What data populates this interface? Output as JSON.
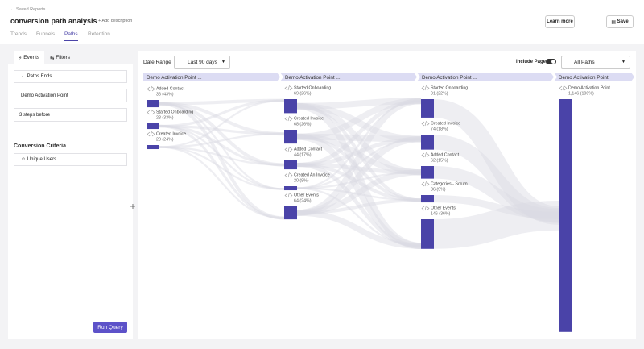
{
  "nav": {
    "back": "Saved Reports",
    "title": "conversion path analysis",
    "add_description": "Add description",
    "tabs": [
      "Trends",
      "Funnels",
      "Paths",
      "Retention"
    ],
    "learn_more": "Learn more",
    "save": "Save"
  },
  "sidebar": {
    "tabs": [
      "Events",
      "Filters"
    ],
    "path_ends": "Paths Ends",
    "event": "Demo Activation Point",
    "steps": "3 steps before",
    "criteria_title": "Conversion Criteria",
    "criteria": "Unique Users",
    "run": "Run Query"
  },
  "toolbar": {
    "date_range_label": "Date Range",
    "date_range": "Last 90 days",
    "include_pages": "Include Pages",
    "paths": "All Paths"
  },
  "columns": [
    {
      "header": "Demo Activation Point ...",
      "nodes": [
        {
          "label": "Added Contact",
          "value": 36,
          "value_label": "36 (43%)"
        },
        {
          "label": "Started Onboarding",
          "value": 28,
          "value_label": "28 (33%)"
        },
        {
          "label": "Created Invoice",
          "value": 20,
          "value_label": "20 (24%)"
        }
      ]
    },
    {
      "header": "Demo Activation Point ...",
      "nodes": [
        {
          "label": "Started Onboarding",
          "value": 69,
          "value_label": "69 (26%)"
        },
        {
          "label": "Created Invoice",
          "value": 68,
          "value_label": "68 (26%)"
        },
        {
          "label": "Added Contact",
          "value": 44,
          "value_label": "44 (17%)"
        },
        {
          "label": "Created An Invoice",
          "value": 20,
          "value_label": "20 (8%)"
        },
        {
          "label": "Other Events",
          "value": 64,
          "value_label": "64 (24%)"
        }
      ]
    },
    {
      "header": "Demo Activation Point ...",
      "nodes": [
        {
          "label": "Started Onboarding",
          "value": 91,
          "value_label": "91 (22%)"
        },
        {
          "label": "Created Invoice",
          "value": 74,
          "value_label": "74 (18%)"
        },
        {
          "label": "Added Contact",
          "value": 62,
          "value_label": "62 (15%)"
        },
        {
          "label": "Categories - Scrum",
          "value": 36,
          "value_label": "36 (9%)"
        },
        {
          "label": "Other Events",
          "value": 146,
          "value_label": "146 (36%)"
        }
      ]
    },
    {
      "header": "Demo Activation Point",
      "nodes": [
        {
          "label": "Demo Activation Point",
          "value": 1146,
          "value_label": "1,146 (100%)"
        }
      ]
    }
  ]
}
